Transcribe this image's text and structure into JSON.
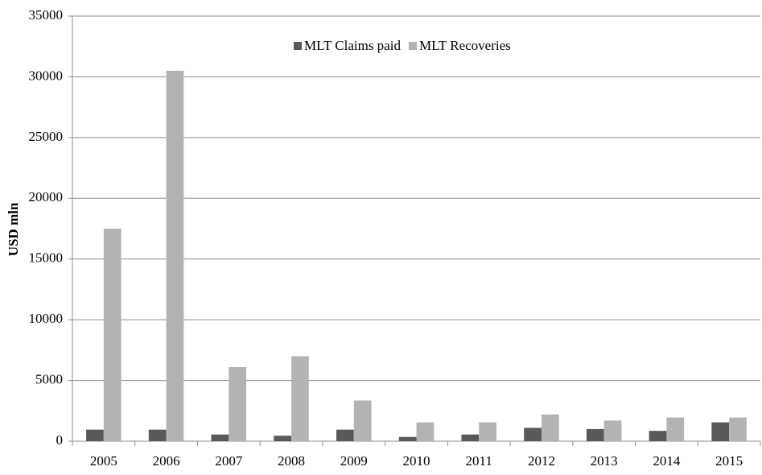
{
  "chart_data": {
    "type": "bar",
    "y_label": "USD mln",
    "categories": [
      "2005",
      "2006",
      "2007",
      "2008",
      "2009",
      "2010",
      "2011",
      "2012",
      "2013",
      "2014",
      "2015"
    ],
    "series": [
      {
        "name": "MLT Claims paid",
        "color": "#595959",
        "values": [
          950,
          950,
          550,
          450,
          950,
          350,
          550,
          1100,
          1000,
          850,
          1550
        ]
      },
      {
        "name": "MLT Recoveries",
        "color": "#b3b3b3",
        "values": [
          17500,
          30500,
          6100,
          7000,
          3350,
          1550,
          1550,
          2200,
          1700,
          1950,
          1950
        ]
      }
    ],
    "ylim": [
      0,
      35000
    ],
    "yticks": [
      0,
      5000,
      10000,
      15000,
      20000,
      25000,
      30000,
      35000
    ],
    "grid": true,
    "legend": "top"
  }
}
